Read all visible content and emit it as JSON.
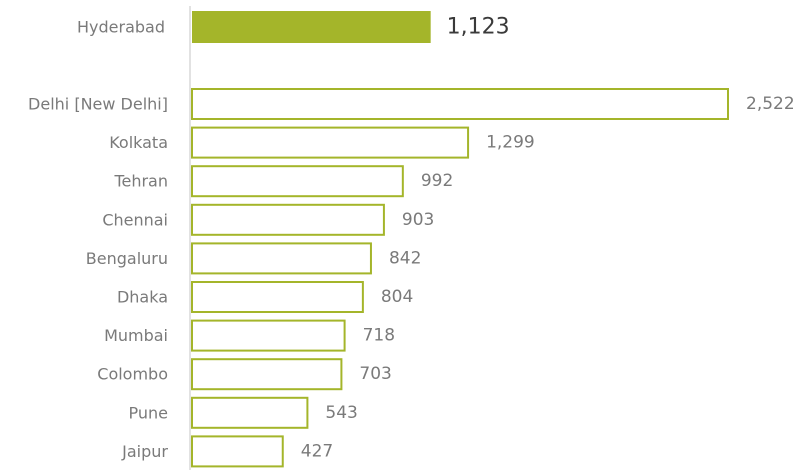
{
  "chart_data": {
    "type": "bar",
    "orientation": "horizontal",
    "title": "",
    "xlabel": "",
    "ylabel": "",
    "grid": false,
    "legend": "none",
    "highlight": {
      "category": "Hyderabad",
      "value": 1123,
      "value_label": "1,123"
    },
    "categories": [
      "Delhi [New Delhi]",
      "Kolkata",
      "Tehran",
      "Chennai",
      "Bengaluru",
      "Dhaka",
      "Mumbai",
      "Colombo",
      "Pune",
      "Jaipur"
    ],
    "values": [
      2522,
      1299,
      992,
      903,
      842,
      804,
      718,
      703,
      543,
      427
    ],
    "value_labels": [
      "2,522",
      "1,299",
      "992",
      "903",
      "842",
      "804",
      "718",
      "703",
      "543",
      "427"
    ],
    "xlim": [
      0,
      2522
    ],
    "colors": {
      "accent": "#a4b52a",
      "bar_outline": "#a4b52a",
      "bar_fill": "#ffffff",
      "axis": "#d9d9d9",
      "label_text": "#7a7a7a",
      "highlight_value_text": "#3a3a3a"
    }
  }
}
